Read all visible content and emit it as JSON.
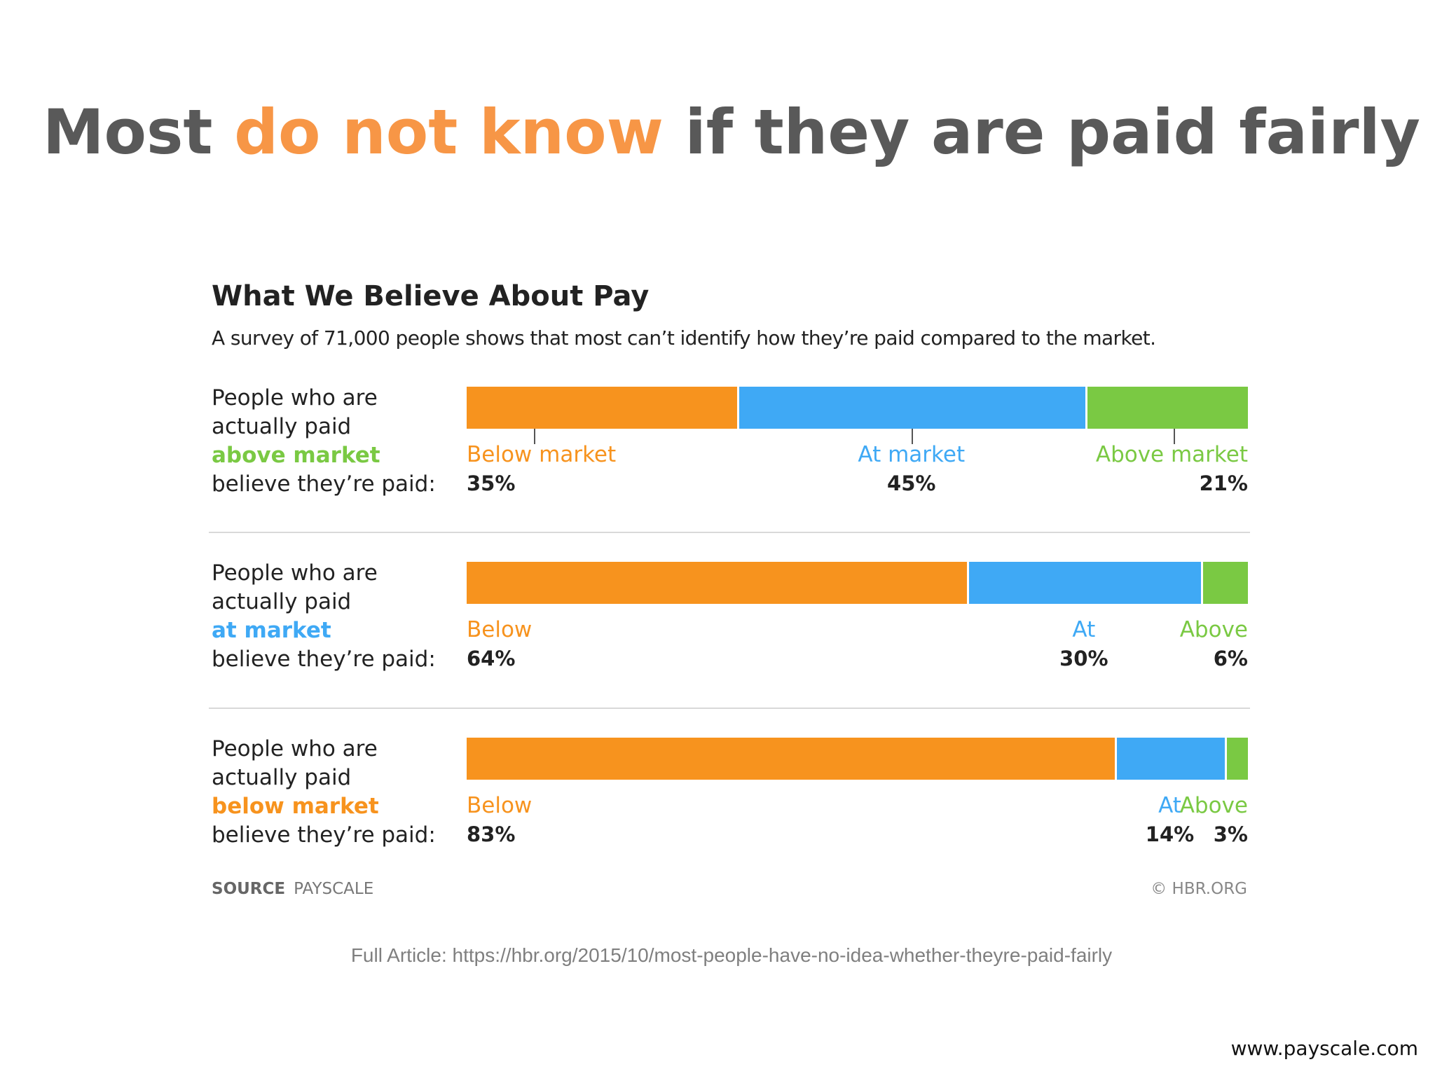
{
  "slide": {
    "title_part1": "Most ",
    "title_accent": "do not know",
    "title_part2": " if they are paid fairly",
    "accent_color": "#f79646",
    "footer_article": "Full Article: https://hbr.org/2015/10/most-people-have-no-idea-whether-theyre-paid-fairly",
    "footer_site": "www.payscale.com"
  },
  "chart_data": {
    "type": "bar",
    "stacked": true,
    "orientation": "horizontal",
    "title": "What We Believe About Pay",
    "subtitle": "A survey of 71,000 people shows that most can’t identify how they’re paid compared to the market.",
    "source_label": "SOURCE",
    "source_value": "PAYSCALE",
    "credit": "© HBR.ORG",
    "colors": {
      "below": "#f7931e",
      "at": "#3fa9f5",
      "above": "#7ac943"
    },
    "groups": [
      {
        "label_line1": "People who are",
        "label_line2": "actually paid",
        "label_emph": "above market",
        "emph_key": "above",
        "label_line4": "believe they’re paid:",
        "with_ticks": true,
        "segments": [
          {
            "key": "below",
            "label": "Below market",
            "value": 35,
            "pct": "35%"
          },
          {
            "key": "at",
            "label": "At market",
            "value": 45,
            "pct": "45%"
          },
          {
            "key": "above",
            "label": "Above market",
            "value": 21,
            "pct": "21%"
          }
        ]
      },
      {
        "label_line1": "People who are",
        "label_line2": "actually paid",
        "label_emph": "at market",
        "emph_key": "at",
        "label_line4": "believe they’re paid:",
        "with_ticks": false,
        "segments": [
          {
            "key": "below",
            "label": "Below",
            "value": 64,
            "pct": "64%"
          },
          {
            "key": "at",
            "label": "At",
            "value": 30,
            "pct": "30%"
          },
          {
            "key": "above",
            "label": "Above",
            "value": 6,
            "pct": "6%"
          }
        ]
      },
      {
        "label_line1": "People who are",
        "label_line2": "actually paid",
        "label_emph": "below market",
        "emph_key": "below",
        "label_line4": "believe they’re paid:",
        "with_ticks": false,
        "segments": [
          {
            "key": "below",
            "label": "Below",
            "value": 83,
            "pct": "83%"
          },
          {
            "key": "at",
            "label": "At",
            "value": 14,
            "pct": "14%"
          },
          {
            "key": "above",
            "label": "Above",
            "value": 3,
            "pct": "3%"
          }
        ]
      }
    ]
  }
}
